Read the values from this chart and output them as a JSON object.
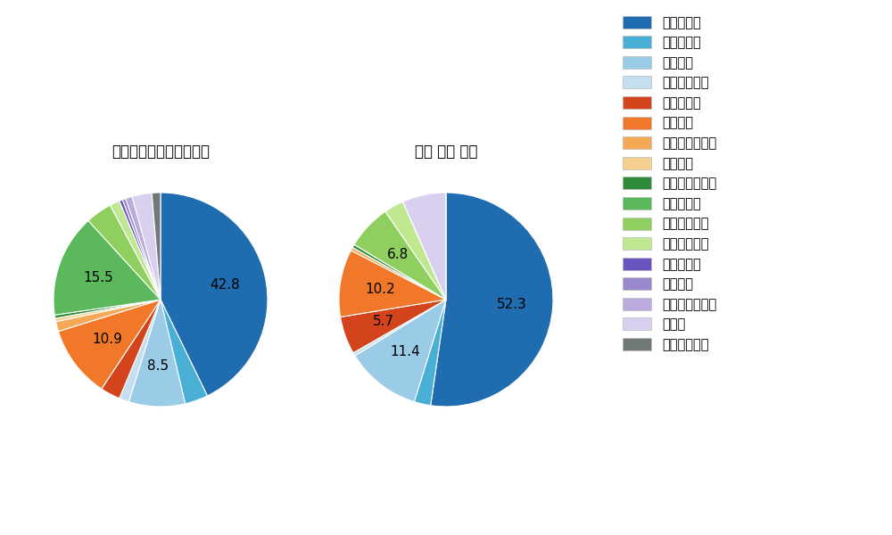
{
  "left_title": "パ・リーグ全プレイヤー",
  "right_title": "角中 勝也 選手",
  "legend_labels": [
    "ストレート",
    "ツーシーム",
    "シュート",
    "カットボール",
    "スプリット",
    "フォーク",
    "チェンジアップ",
    "シンカー",
    "高速スライダー",
    "スライダー",
    "縦スライダー",
    "パワーカーブ",
    "スクリュー",
    "ナックル",
    "ナックルカーブ",
    "カーブ",
    "スローカーブ"
  ],
  "colors": [
    "#1f6cb0",
    "#4aafd5",
    "#9acce8",
    "#c5dff0",
    "#d4441c",
    "#f07828",
    "#f5a855",
    "#f5d090",
    "#2e8b3a",
    "#5cb85c",
    "#8ecf60",
    "#c0e890",
    "#6a52c0",
    "#9988cc",
    "#bbaadd",
    "#d8d0ee",
    "#707878"
  ],
  "left_values": [
    42.8,
    3.5,
    8.5,
    1.5,
    3.0,
    10.9,
    1.5,
    0.5,
    0.5,
    15.5,
    4.0,
    1.5,
    0.5,
    0.5,
    1.0,
    3.0,
    1.3
  ],
  "left_labels_show": [
    "42.8",
    "",
    "8.5",
    "",
    "",
    "10.9",
    "",
    "",
    "",
    "15.5",
    "",
    "",
    "",
    "",
    "",
    "",
    ""
  ],
  "right_values": [
    52.3,
    2.5,
    11.4,
    0.5,
    5.7,
    10.2,
    0.5,
    0.0,
    0.5,
    0.0,
    6.8,
    3.0,
    0.0,
    0.0,
    0.0,
    6.6,
    0.0
  ],
  "right_labels_show": [
    "52.3",
    "",
    "11.4",
    "",
    "5.7",
    "10.2",
    "",
    "",
    "",
    "",
    "6.8",
    "",
    "",
    "",
    "",
    "",
    ""
  ],
  "background_color": "#ffffff"
}
